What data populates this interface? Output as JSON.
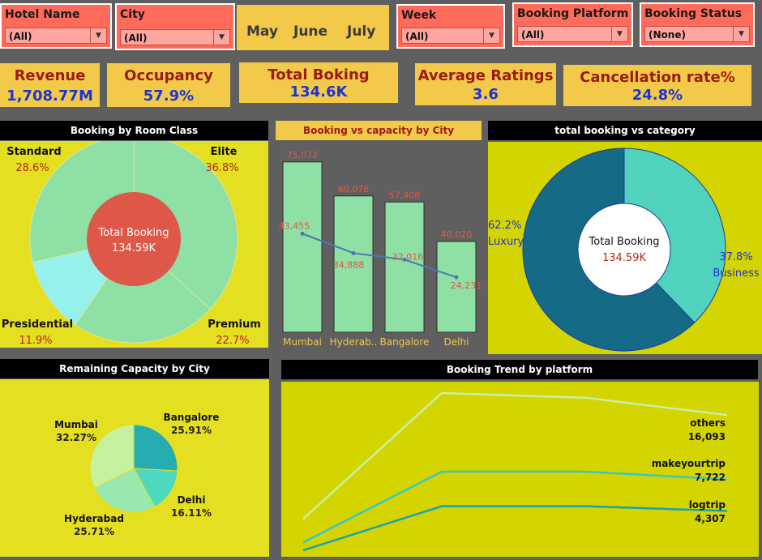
{
  "filters": {
    "hotel_name": {
      "label": "Hotel Name",
      "value": "(All)"
    },
    "city": {
      "label": "City",
      "value": "(All)"
    },
    "months": [
      "May",
      "June",
      "July"
    ],
    "week": {
      "label": "Week",
      "value": "(All)"
    },
    "booking_platform": {
      "label": "Booking Platform",
      "value": "(All)"
    },
    "booking_status": {
      "label": "Booking Status",
      "value": "(None)"
    }
  },
  "kpis": {
    "revenue": {
      "title": "Revenue",
      "value": "1,708.77M"
    },
    "occupancy": {
      "title": "Occupancy",
      "value": "57.9%"
    },
    "total_booking": {
      "title": "Total Boking",
      "value": "134.6K"
    },
    "avg_ratings": {
      "title": "Average Ratings",
      "value": "3.6"
    },
    "cancellation": {
      "title": "Cancellation rate%",
      "value": "24.8%"
    }
  },
  "colors": {
    "background": "#5f5f5f",
    "filter": "#ff6b5a",
    "kpi_bg": "#f3c94a",
    "kpi_title": "#9b1b0e",
    "kpi_value": "#1d34d6",
    "panel": "#e4df21"
  },
  "chart_data": [
    {
      "id": "room_class",
      "type": "pie",
      "title": "Booking by Room Class",
      "center_label": "Total Booking",
      "center_value": "134.59K",
      "categories": [
        "Elite",
        "Premium",
        "Presidential",
        "Standard"
      ],
      "percent_labels": [
        "36.8%",
        "22.7%",
        "11.9%",
        "28.6%"
      ],
      "values": [
        36.8,
        22.7,
        11.9,
        28.6
      ],
      "colors": [
        "#8fe0a4",
        "#8fe0a4",
        "#96f0ec",
        "#8fe0a4"
      ]
    },
    {
      "id": "booking_vs_capacity",
      "type": "bar",
      "title": "Booking vs capacity by City",
      "categories": [
        "Mumbai",
        "Hyderab..",
        "Bangalore",
        "Delhi"
      ],
      "series": [
        {
          "type": "bar",
          "values": [
            75072,
            60076,
            57408,
            40020
          ],
          "labels": [
            "75,072",
            "60,076",
            "57,408",
            "40,020"
          ]
        },
        {
          "type": "line",
          "values": [
            43455,
            34888,
            32016,
            24231
          ],
          "labels": [
            "43,455",
            "34,888",
            "32,016",
            "24,231"
          ]
        }
      ],
      "ylim": [
        0,
        80000
      ]
    },
    {
      "id": "category",
      "type": "pie",
      "title": "total booking vs category",
      "center_label": "Total Booking",
      "center_value": "134.59K",
      "categories": [
        "Business",
        "Luxury"
      ],
      "percent_labels": [
        "37.8%",
        "62.2%"
      ],
      "values": [
        37.8,
        62.2
      ],
      "colors": [
        "#50d2bc",
        "#156b86"
      ]
    },
    {
      "id": "remaining_capacity",
      "type": "pie",
      "title": "Remaining Capacity by City",
      "categories": [
        "Bangalore",
        "Delhi",
        "Hyderabad",
        "Mumbai"
      ],
      "percent_labels": [
        "25.91%",
        "16.11%",
        "25.71%",
        "32.27%"
      ],
      "values": [
        25.91,
        16.11,
        25.71,
        32.27
      ],
      "colors": [
        "#26adb2",
        "#4fd8c0",
        "#98e8b0",
        "#c6f2a0"
      ]
    },
    {
      "id": "trend_platform",
      "type": "line",
      "title": "Booking Trend by platform",
      "series": [
        {
          "name": "others",
          "label": "16,093",
          "values": [
            0.2,
            1.0,
            0.97,
            0.86
          ],
          "color": "#c5f2a8"
        },
        {
          "name": "makeyourtrip",
          "label": "7,722",
          "values": [
            0.05,
            0.5,
            0.5,
            0.45
          ],
          "color": "#35c8c9"
        },
        {
          "name": "logtrip",
          "label": "4,307",
          "values": [
            0.0,
            0.28,
            0.28,
            0.25
          ],
          "color": "#1ba2b2"
        }
      ]
    }
  ]
}
